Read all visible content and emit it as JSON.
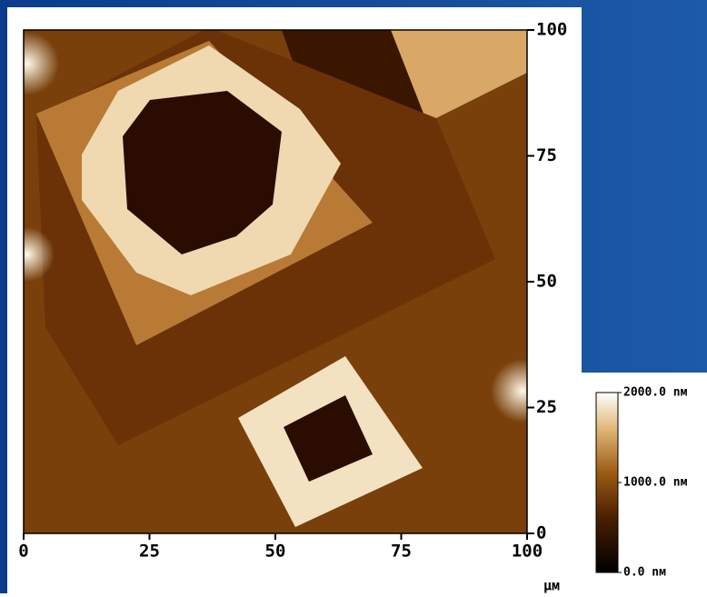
{
  "chart_data": {
    "type": "image",
    "x_unit": "µм",
    "xlim": [
      0,
      100
    ],
    "xticks": [
      0,
      25,
      50,
      75,
      100
    ],
    "ylim": [
      0,
      100
    ],
    "yticks": [
      0,
      25,
      50,
      75,
      100
    ],
    "colorbar": {
      "lim": [
        0,
        2000
      ],
      "ticks": [
        {
          "value": 2000,
          "label": "2000.0 nм"
        },
        {
          "value": 1000,
          "label": "1000.0 nм"
        },
        {
          "value": 0,
          "label": "0.0 nм"
        }
      ]
    }
  }
}
